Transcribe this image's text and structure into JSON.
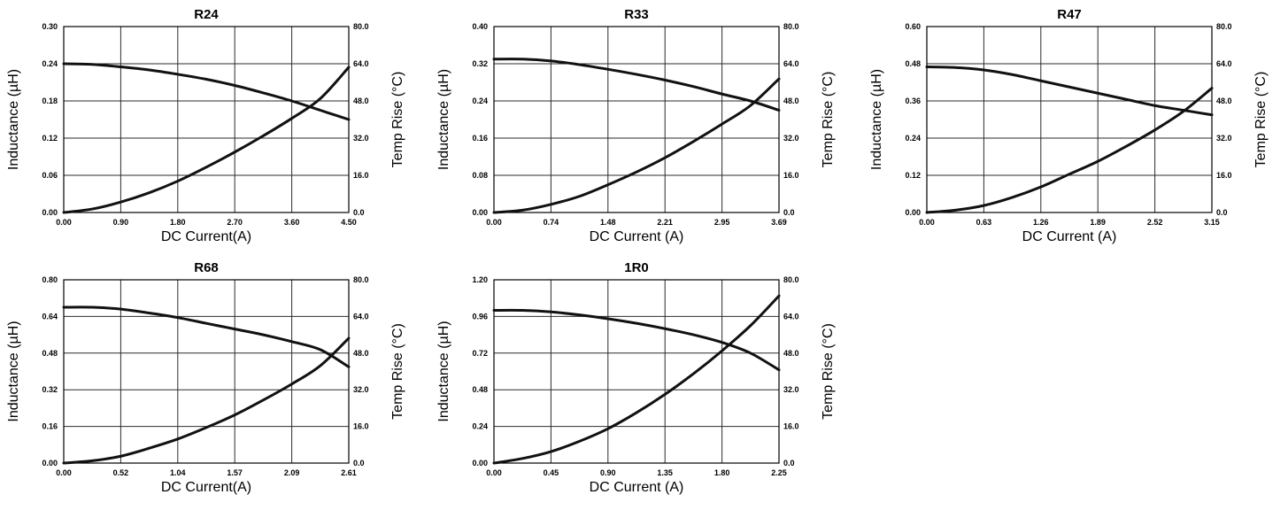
{
  "chart_data": [
    {
      "type": "line",
      "title": "R24",
      "xlabel": "DC Current(A)",
      "ylabel": "Inductance (µH)",
      "y2label": "Temp Rise (°C)",
      "xlim": [
        0,
        4.5
      ],
      "ylim": [
        0,
        0.3
      ],
      "y2lim": [
        0,
        80
      ],
      "xticks": [
        "0.00",
        "0.90",
        "1.80",
        "2.70",
        "3.60",
        "4.50"
      ],
      "yticks": [
        "0.00",
        "0.06",
        "0.12",
        "0.18",
        "0.24",
        "0.30"
      ],
      "y2ticks": [
        "0.0",
        "16.0",
        "32.0",
        "48.0",
        "64.0",
        "80.0"
      ],
      "grid": true,
      "series": [
        {
          "axis": "left",
          "x": [
            0,
            0.45,
            0.9,
            1.35,
            1.8,
            2.25,
            2.7,
            3.15,
            3.6,
            4.05,
            4.5
          ],
          "y": [
            0.24,
            0.239,
            0.235,
            0.23,
            0.223,
            0.215,
            0.205,
            0.193,
            0.18,
            0.165,
            0.15
          ]
        },
        {
          "axis": "right",
          "x": [
            0,
            0.45,
            0.9,
            1.35,
            1.8,
            2.25,
            2.7,
            3.15,
            3.6,
            4.05,
            4.5
          ],
          "y": [
            0,
            1.5,
            4.5,
            8.5,
            13.5,
            19.5,
            26,
            33,
            40.5,
            49,
            62.5
          ]
        }
      ]
    },
    {
      "type": "line",
      "title": "R33",
      "xlabel": "DC Current (A)",
      "ylabel": "Inductance (µH)",
      "y2label": "Temp Rise (°C)",
      "xlim": [
        0,
        3.69
      ],
      "ylim": [
        0,
        0.4
      ],
      "y2lim": [
        0,
        80
      ],
      "xticks": [
        "0.00",
        "0.74",
        "1.48",
        "2.21",
        "2.95",
        "3.69"
      ],
      "yticks": [
        "0.00",
        "0.08",
        "0.16",
        "0.24",
        "0.32",
        "0.40"
      ],
      "y2ticks": [
        "0.0",
        "16.0",
        "32.0",
        "48.0",
        "64.0",
        "80.0"
      ],
      "grid": true,
      "series": [
        {
          "axis": "left",
          "x": [
            0,
            0.37,
            0.74,
            1.11,
            1.48,
            1.85,
            2.21,
            2.58,
            2.95,
            3.32,
            3.69
          ],
          "y": [
            0.33,
            0.33,
            0.326,
            0.318,
            0.308,
            0.297,
            0.285,
            0.271,
            0.255,
            0.24,
            0.22
          ]
        },
        {
          "axis": "right",
          "x": [
            0,
            0.37,
            0.74,
            1.11,
            1.48,
            1.85,
            2.21,
            2.58,
            2.95,
            3.32,
            3.69
          ],
          "y": [
            0,
            1,
            3.5,
            7,
            12,
            17.5,
            23.5,
            30.5,
            38,
            46,
            57.5
          ]
        }
      ]
    },
    {
      "type": "line",
      "title": "R47",
      "xlabel": "DC Current (A)",
      "ylabel": "Inductance (µH)",
      "y2label": "Temp Rise (°C)",
      "xlim": [
        0,
        3.15
      ],
      "ylim": [
        0,
        0.6
      ],
      "y2lim": [
        0,
        80
      ],
      "xticks": [
        "0.00",
        "0.63",
        "1.26",
        "1.89",
        "2.52",
        "3.15"
      ],
      "yticks": [
        "0.00",
        "0.12",
        "0.24",
        "0.36",
        "0.48",
        "0.60"
      ],
      "y2ticks": [
        "0.0",
        "16.0",
        "32.0",
        "48.0",
        "64.0",
        "80.0"
      ],
      "grid": true,
      "series": [
        {
          "axis": "left",
          "x": [
            0,
            0.315,
            0.63,
            0.945,
            1.26,
            1.575,
            1.89,
            2.205,
            2.52,
            2.835,
            3.15
          ],
          "y": [
            0.47,
            0.468,
            0.46,
            0.445,
            0.425,
            0.405,
            0.385,
            0.365,
            0.345,
            0.33,
            0.315
          ]
        },
        {
          "axis": "right",
          "x": [
            0,
            0.315,
            0.63,
            0.945,
            1.26,
            1.575,
            1.89,
            2.205,
            2.52,
            2.835,
            3.15
          ],
          "y": [
            0,
            1,
            3,
            6.5,
            11,
            16.5,
            22,
            28.5,
            35.5,
            43.5,
            53.5
          ]
        }
      ]
    },
    {
      "type": "line",
      "title": "R68",
      "xlabel": "DC Current(A)",
      "ylabel": "Inductance (µH)",
      "y2label": "Temp Rise (°C)",
      "xlim": [
        0,
        2.61
      ],
      "ylim": [
        0,
        0.8
      ],
      "y2lim": [
        0,
        80
      ],
      "xticks": [
        "0.00",
        "0.52",
        "1.04",
        "1.57",
        "2.09",
        "2.61"
      ],
      "yticks": [
        "0.00",
        "0.16",
        "0.32",
        "0.48",
        "0.64",
        "0.80"
      ],
      "y2ticks": [
        "0.0",
        "16.0",
        "32.0",
        "48.0",
        "64.0",
        "80.0"
      ],
      "grid": true,
      "series": [
        {
          "axis": "left",
          "x": [
            0,
            0.261,
            0.522,
            0.783,
            1.044,
            1.305,
            1.566,
            1.827,
            2.088,
            2.349,
            2.61
          ],
          "y": [
            0.68,
            0.68,
            0.672,
            0.655,
            0.635,
            0.61,
            0.585,
            0.56,
            0.53,
            0.495,
            0.42
          ]
        },
        {
          "axis": "right",
          "x": [
            0,
            0.261,
            0.522,
            0.783,
            1.044,
            1.305,
            1.566,
            1.827,
            2.088,
            2.349,
            2.61
          ],
          "y": [
            0,
            1,
            3,
            6.5,
            10.5,
            15.5,
            21,
            27.5,
            34.5,
            42.5,
            54.5
          ]
        }
      ]
    },
    {
      "type": "line",
      "title": "1R0",
      "xlabel": "DC Current (A)",
      "ylabel": "Inductance (µH)",
      "y2label": "Temp Rise (°C)",
      "xlim": [
        0,
        2.25
      ],
      "ylim": [
        0,
        1.2
      ],
      "y2lim": [
        0,
        80
      ],
      "xticks": [
        "0.00",
        "0.45",
        "0.90",
        "1.35",
        "1.80",
        "2.25"
      ],
      "yticks": [
        "0.00",
        "0.24",
        "0.48",
        "0.72",
        "0.96",
        "1.20"
      ],
      "y2ticks": [
        "0.0",
        "16.0",
        "32.0",
        "48.0",
        "64.0",
        "80.0"
      ],
      "grid": true,
      "series": [
        {
          "axis": "left",
          "x": [
            0,
            0.225,
            0.45,
            0.675,
            0.9,
            1.125,
            1.35,
            1.575,
            1.8,
            2.025,
            2.25
          ],
          "y": [
            1.0,
            1.0,
            0.99,
            0.97,
            0.945,
            0.915,
            0.88,
            0.84,
            0.79,
            0.72,
            0.61
          ]
        },
        {
          "axis": "right",
          "x": [
            0,
            0.225,
            0.45,
            0.675,
            0.9,
            1.125,
            1.35,
            1.575,
            1.8,
            2.025,
            2.25
          ],
          "y": [
            0,
            2,
            5,
            9.5,
            15,
            22,
            30,
            39,
            49,
            60,
            73
          ]
        }
      ]
    }
  ]
}
